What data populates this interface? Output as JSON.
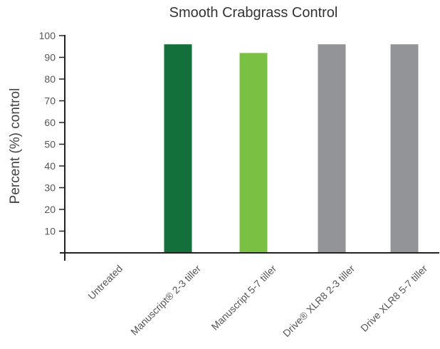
{
  "chart_data": {
    "type": "bar",
    "title": "Smooth Crabgrass Control",
    "xlabel": "",
    "ylabel": "Percent (%) control",
    "ylim": [
      0,
      100
    ],
    "yticks": [
      10,
      20,
      30,
      40,
      50,
      60,
      70,
      80,
      90,
      100
    ],
    "categories": [
      "Untreated",
      "Manuscript® 2-3 tiller",
      "Manuscript 5-7 tiller",
      "Drive® XLR8 2-3 tiller",
      "Drive XLR8 5-7 tiller"
    ],
    "values": [
      0,
      96,
      92,
      96,
      96
    ],
    "colors": [
      "#ffffff",
      "#13703b",
      "#7ac143",
      "#929497",
      "#929497"
    ],
    "grid": false,
    "legend": "none"
  }
}
